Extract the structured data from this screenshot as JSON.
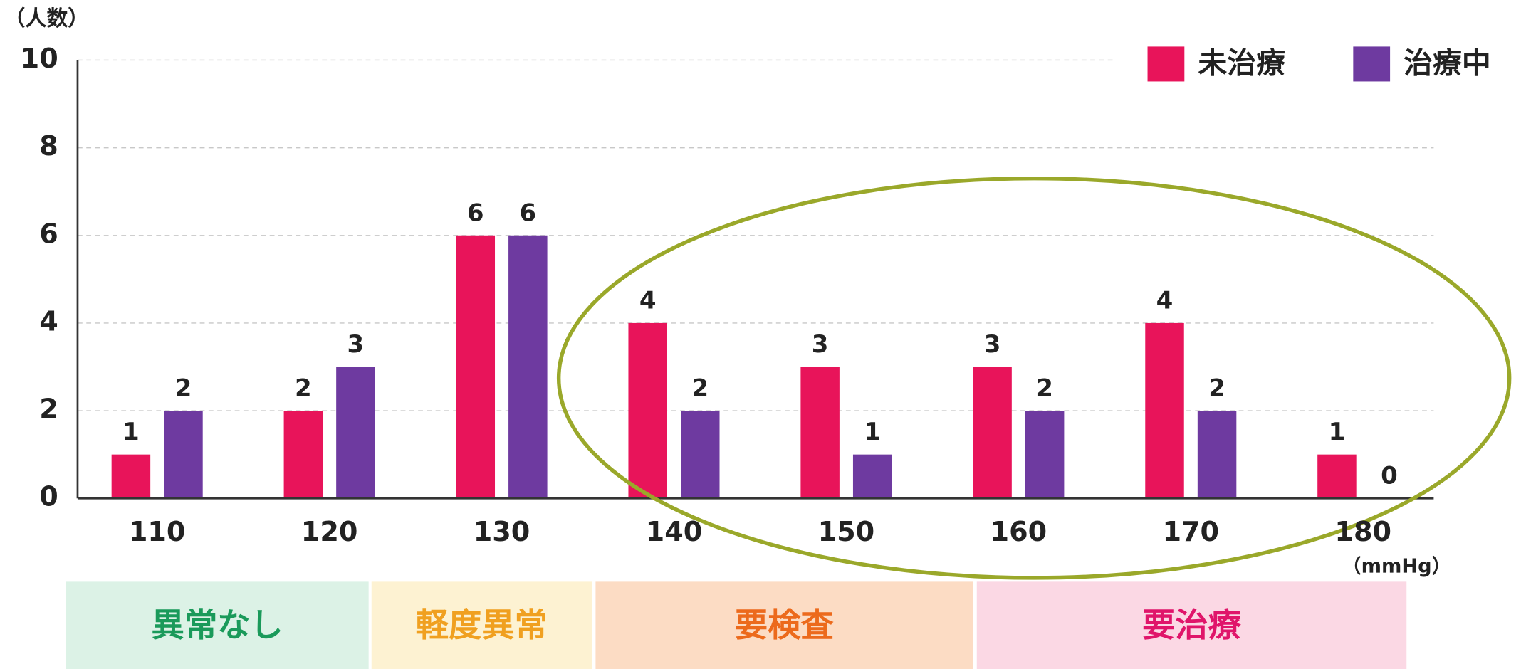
{
  "chart_data": {
    "type": "bar",
    "y_label": "（人数）",
    "x_unit": "（mmHg）",
    "categories": [
      "110",
      "120",
      "130",
      "140",
      "150",
      "160",
      "170",
      "180"
    ],
    "series": [
      {
        "name": "未治療",
        "color": "#e8145a",
        "values": [
          1,
          2,
          6,
          4,
          3,
          3,
          4,
          1
        ]
      },
      {
        "name": "治療中",
        "color": "#6e3aa0",
        "values": [
          2,
          3,
          6,
          2,
          1,
          2,
          2,
          0
        ]
      }
    ],
    "ylim": [
      0,
      10
    ],
    "yticks": [
      0,
      2,
      4,
      6,
      8,
      10
    ],
    "grid": true,
    "legend": "top-right",
    "bands": [
      {
        "label": "異常なし",
        "background": "#dcf2e6",
        "color": "#1a9a5a"
      },
      {
        "label": "軽度異常",
        "background": "#fdf2d2",
        "color": "#f0a020"
      },
      {
        "label": "要検査",
        "background": "#fcdcc4",
        "color": "#ec6a1c"
      },
      {
        "label": "要治療",
        "background": "#fbd8e4",
        "color": "#e0156a"
      }
    ]
  }
}
